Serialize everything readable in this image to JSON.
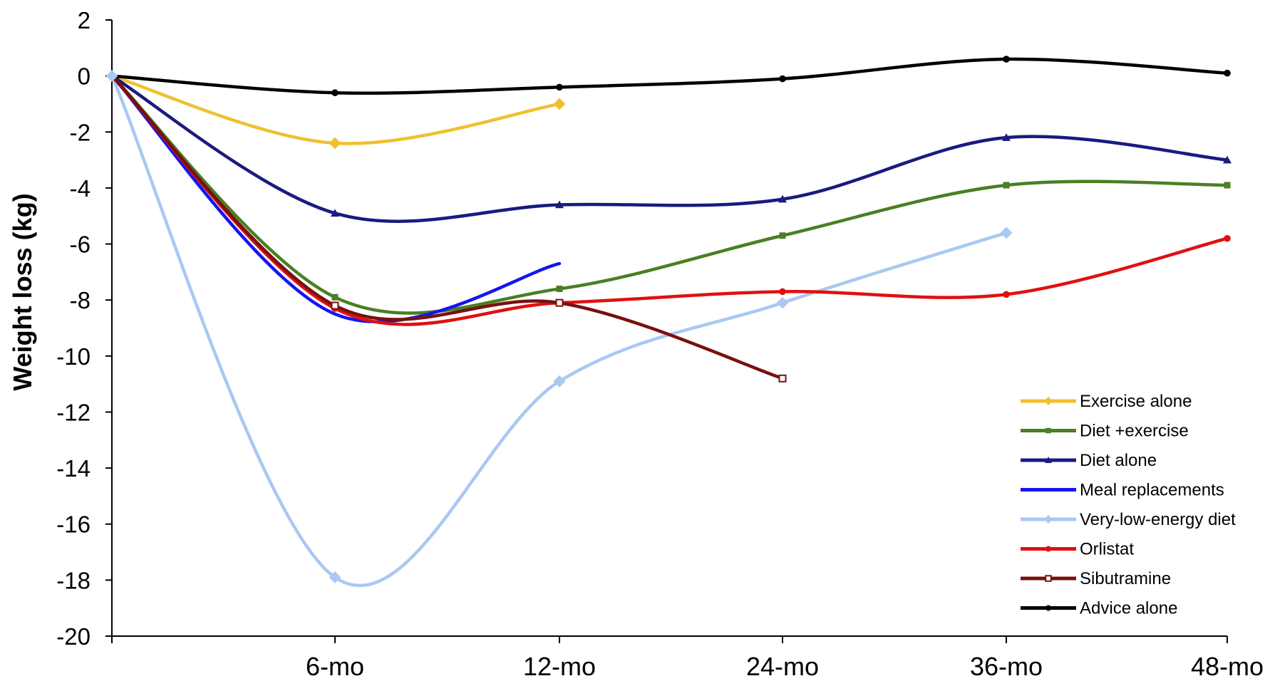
{
  "chart_data": {
    "type": "line",
    "title": "",
    "xlabel": "",
    "ylabel": "Weight loss (kg)",
    "ylim": [
      -20,
      2
    ],
    "yticks": [
      "2",
      "0",
      "-2",
      "-4",
      "-6",
      "-8",
      "-10",
      "-12",
      "-14",
      "-16",
      "-18",
      "-20"
    ],
    "x_tick_labels": [
      "6-mo",
      "12-mo",
      "24-mo",
      "36-mo",
      "48-mo"
    ],
    "x_tick_months": [
      6,
      12,
      24,
      36,
      48
    ],
    "grid": false,
    "legend_position": "bottom-right",
    "series": [
      {
        "name": "Exercise alone",
        "color": "#f0c030",
        "marker": "diamond",
        "x": [
          0,
          6,
          12
        ],
        "y": [
          0,
          -2.4,
          -1.0
        ]
      },
      {
        "name": "Diet +exercise",
        "color": "#4a7f23",
        "marker": "square",
        "x": [
          0,
          6,
          12,
          24,
          36,
          48
        ],
        "y": [
          0,
          -7.9,
          -7.6,
          -5.7,
          -3.9,
          -3.9
        ]
      },
      {
        "name": "Diet alone",
        "color": "#1a1a80",
        "marker": "triangle",
        "x": [
          0,
          6,
          12,
          24,
          36,
          48
        ],
        "y": [
          0,
          -4.9,
          -4.6,
          -4.4,
          -2.2,
          -3.0
        ]
      },
      {
        "name": "Meal replacements",
        "color": "#1515f0",
        "marker": "none",
        "x": [
          0,
          6,
          12
        ],
        "y": [
          0,
          -8.5,
          -6.7
        ]
      },
      {
        "name": "Very-low-energy diet",
        "color": "#a9c8f2",
        "marker": "diamond",
        "x": [
          0,
          6,
          12,
          24,
          36
        ],
        "y": [
          0,
          -17.9,
          -10.9,
          -8.1,
          -5.6
        ]
      },
      {
        "name": "Orlistat",
        "color": "#e01010",
        "marker": "circle",
        "x": [
          0,
          6,
          12,
          24,
          36,
          48
        ],
        "y": [
          0,
          -8.3,
          -8.1,
          -7.7,
          -7.8,
          -5.8
        ]
      },
      {
        "name": "Sibutramine",
        "color": "#7a0f0f",
        "marker": "open-square",
        "x": [
          0,
          6,
          12,
          24
        ],
        "y": [
          0,
          -8.2,
          -8.1,
          -10.8
        ]
      },
      {
        "name": "Advice alone",
        "color": "#000000",
        "marker": "circle",
        "x": [
          0,
          6,
          12,
          24,
          36,
          48
        ],
        "y": [
          0,
          -0.6,
          -0.4,
          -0.1,
          0.6,
          0.1
        ]
      }
    ]
  }
}
